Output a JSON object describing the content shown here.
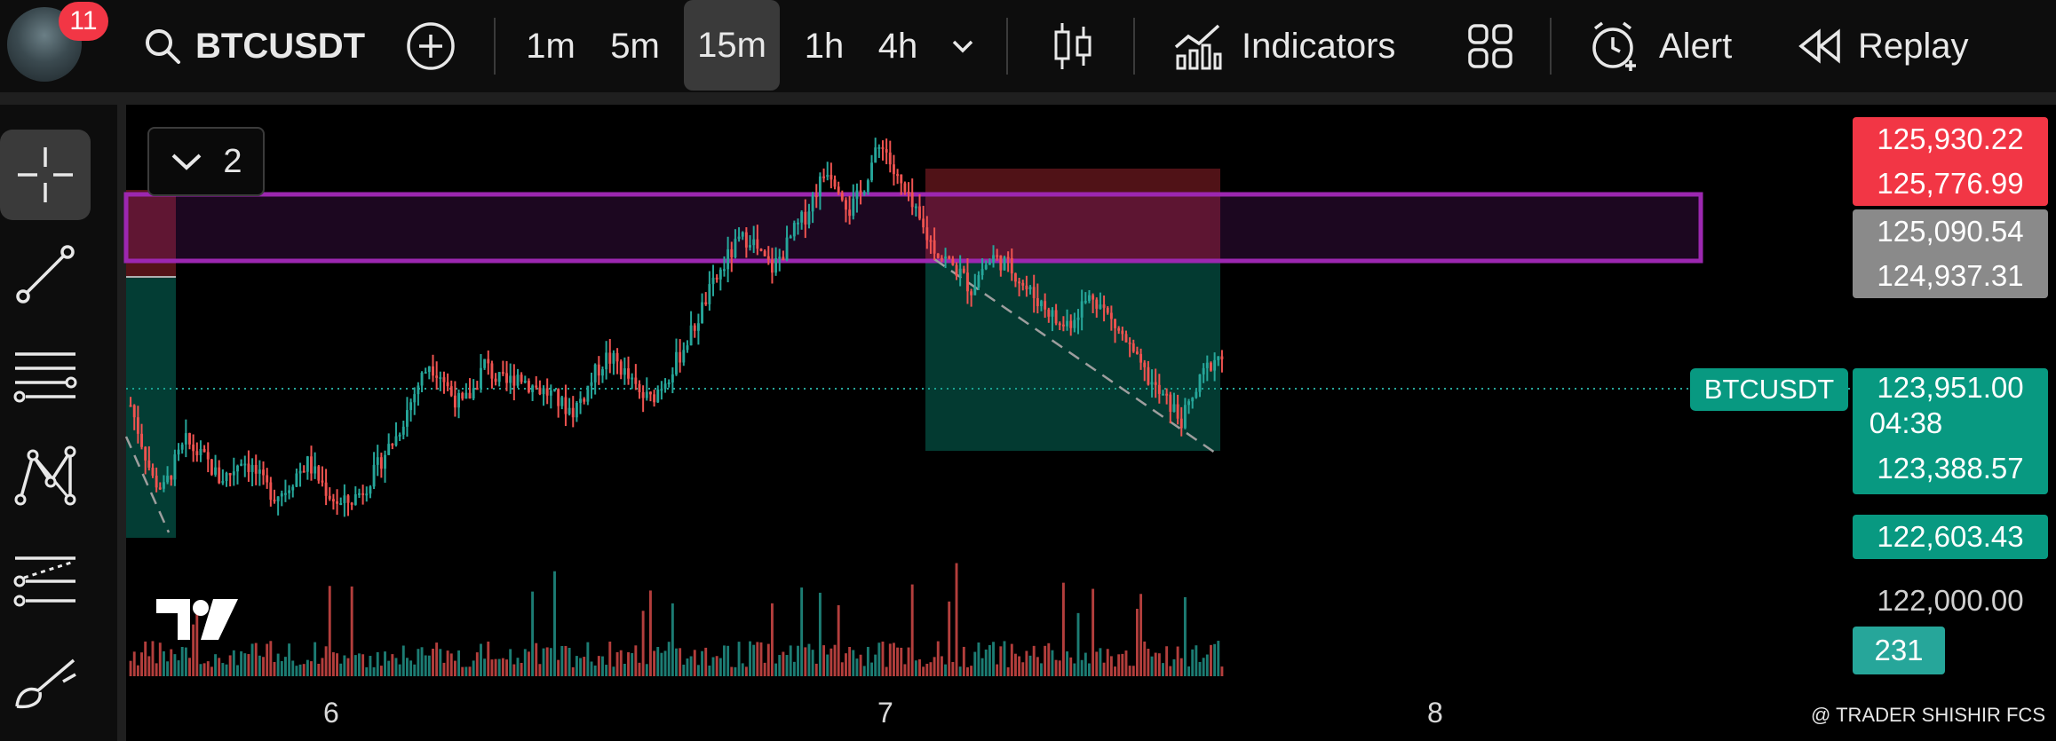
{
  "header": {
    "notification_count": "11",
    "symbol": "BTCUSDT",
    "intervals": [
      "1m",
      "5m",
      "15m",
      "1h",
      "4h"
    ],
    "active_interval": "15m",
    "indicators_label": "Indicators",
    "alert_label": "Alert",
    "replay_label": "Replay"
  },
  "chart_panel": {
    "layer_count": "2",
    "symbol_tag": "BTCUSDT",
    "countdown": "04:38",
    "watermark": "@ TRADER SHISHIR FCS",
    "colors": {
      "up": "#26a69a",
      "down": "#ef5350",
      "zone": "#9c27b0",
      "loss_box": "#f23645",
      "profit_box": "#089981"
    }
  },
  "chart_data": {
    "type": "candlestick",
    "x_tick_labels": [
      "6",
      "7",
      "8"
    ],
    "y_tick_labels": [
      "122,000.00"
    ],
    "price_labels": [
      {
        "value": "125,930.22",
        "role": "stop-loss-top",
        "color": "#f23645"
      },
      {
        "value": "125,776.99",
        "role": "stop-loss",
        "color": "#f23645"
      },
      {
        "value": "125,090.54",
        "role": "zone-top",
        "color": "#8a8a8a"
      },
      {
        "value": "124,937.31",
        "role": "zone-bottom",
        "color": "#8a8a8a"
      },
      {
        "value": "123,951.00",
        "role": "last-price",
        "color": "#089981"
      },
      {
        "value": "123,388.57",
        "role": "target",
        "color": "#089981"
      },
      {
        "value": "122,603.43",
        "role": "target-2",
        "color": "#089981"
      }
    ],
    "volume_label": "231",
    "last_price": 123951.0,
    "y_range": [
      121450,
      126350
    ],
    "close_series": [
      123500,
      123150,
      122800,
      122700,
      122950,
      123150,
      123050,
      122950,
      122800,
      122850,
      123000,
      122900,
      122750,
      122650,
      122700,
      122850,
      122950,
      122800,
      122650,
      122550,
      122600,
      122700,
      122850,
      123050,
      123200,
      123450,
      123700,
      123900,
      123800,
      123600,
      123500,
      123650,
      123900,
      123750,
      123700,
      123800,
      123700,
      123650,
      123600,
      123500,
      123450,
      123600,
      123800,
      123950,
      123900,
      123750,
      123600,
      123550,
      123700,
      123850,
      124050,
      124250,
      124500,
      124700,
      124900,
      125050,
      125100,
      124900,
      124800,
      124950,
      125150,
      125300,
      125550,
      125750,
      125600,
      125350,
      125500,
      125800,
      126000,
      125700,
      125500,
      125300,
      125100,
      124950,
      124850,
      124750,
      124600,
      124800,
      124900,
      124850,
      124750,
      124600,
      124500,
      124400,
      124250,
      124300,
      124450,
      124550,
      124400,
      124250,
      124100,
      123900,
      123750,
      123600,
      123500,
      123350,
      123550,
      123800,
      123951
    ]
  }
}
